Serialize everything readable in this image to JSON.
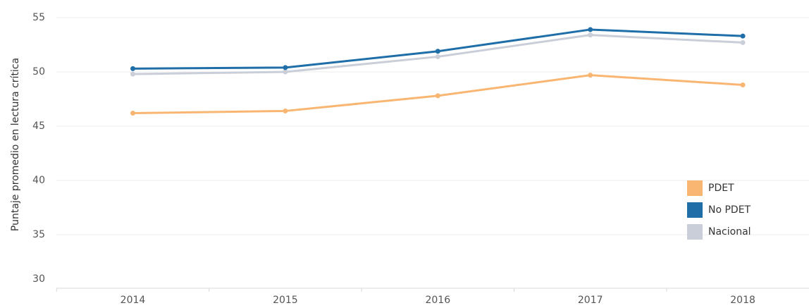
{
  "chart_data": {
    "type": "line",
    "y_label": "Puntaje promedio en lectura crítica",
    "categories": [
      "2014",
      "2015",
      "2016",
      "2017",
      "2018"
    ],
    "series": [
      {
        "name": "PDET",
        "color": "#f9b672",
        "values": [
          46.2,
          46.4,
          47.8,
          49.7,
          48.8
        ]
      },
      {
        "name": "No PDET",
        "color": "#1f6ea8",
        "values": [
          50.3,
          50.4,
          51.9,
          53.9,
          53.3
        ]
      },
      {
        "name": "Nacional",
        "color": "#c9ced8",
        "values": [
          49.8,
          50.0,
          51.4,
          53.4,
          52.7
        ]
      }
    ],
    "draw_order": [
      2,
      0,
      1
    ],
    "ylim": [
      30,
      56
    ],
    "yticks": [
      30,
      35,
      40,
      45,
      50,
      55
    ],
    "grid": true,
    "legend": "bottom-right"
  }
}
